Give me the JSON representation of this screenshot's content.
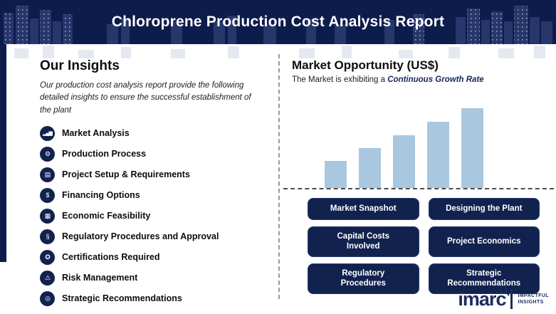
{
  "header": {
    "title": "Chloroprene Production Cost Analysis Report"
  },
  "insights": {
    "heading": "Our Insights",
    "description": "Our production cost analysis report provide the following detailed insights to ensure the successful establishment of the plant",
    "items": [
      {
        "label": "Market Analysis",
        "icon": "bar-chart-icon",
        "glyph": "▂▄▆"
      },
      {
        "label": "Production Process",
        "icon": "gear-icon",
        "glyph": "⚙"
      },
      {
        "label": "Project Setup & Requirements",
        "icon": "clipboard-icon",
        "glyph": "▤"
      },
      {
        "label": "Financing Options",
        "icon": "dollar-icon",
        "glyph": "$"
      },
      {
        "label": "Economic Feasibility",
        "icon": "calculator-icon",
        "glyph": "▦"
      },
      {
        "label": "Regulatory Procedures and Approval",
        "icon": "regulation-icon",
        "glyph": "§"
      },
      {
        "label": "Certifications Required",
        "icon": "certificate-icon",
        "glyph": "✪"
      },
      {
        "label": "Risk Management",
        "icon": "warning-icon",
        "glyph": "⚠"
      },
      {
        "label": "Strategic Recommendations",
        "icon": "target-icon",
        "glyph": "◎"
      }
    ]
  },
  "market": {
    "heading": "Market Opportunity (US$)",
    "subtitle_prefix": "The Market is exhibiting a ",
    "subtitle_highlight": "Continuous Growth Rate"
  },
  "chart_data": {
    "type": "bar",
    "x": [
      1,
      2,
      3,
      4,
      5
    ],
    "values": [
      34,
      50,
      66,
      83,
      100
    ],
    "title": "Market Opportunity (US$)",
    "xlabel": "",
    "ylabel": "",
    "ylim": [
      0,
      100
    ],
    "units": "relative index (no axis labels shown)",
    "grid": false,
    "legend": false,
    "annotation": "The Market is exhibiting a Continuous Growth Rate",
    "bar_color": "#a9c7df",
    "baseline_style": "dashed"
  },
  "buttons": [
    {
      "label": "Market Snapshot"
    },
    {
      "label": "Designing the Plant"
    },
    {
      "label": "Capital Costs\nInvolved"
    },
    {
      "label": "Project Economics"
    },
    {
      "label": "Regulatory\nProcedures"
    },
    {
      "label": "Strategic\nRecommendations"
    }
  ],
  "logo": {
    "brand": "imarc",
    "tagline_line1": "IMPACTFUL",
    "tagline_line2": "INSIGHTS"
  },
  "colors": {
    "navy": "#0e1c4b",
    "button_navy": "#12224f",
    "bar_blue": "#a9c7df",
    "highlight_navy": "#16265c"
  }
}
